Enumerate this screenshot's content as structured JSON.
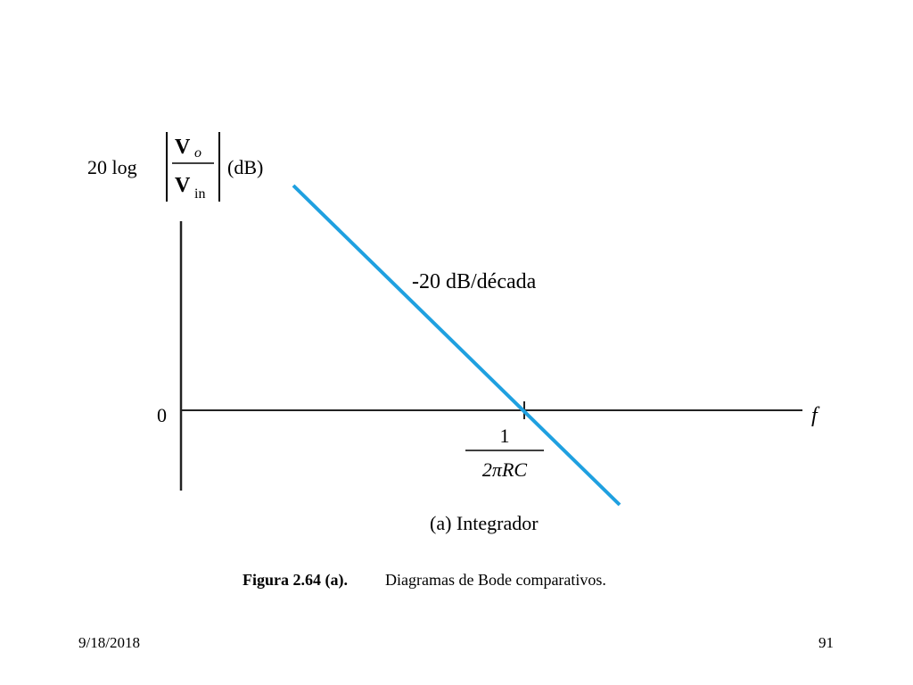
{
  "y_axis_label": {
    "prefix": "20 log",
    "numerator": "V",
    "numerator_sub": "o",
    "denominator": "V",
    "denominator_sub": "in",
    "unit": "(dB)"
  },
  "slope_label": "-20 dB/década",
  "origin_label": "0",
  "x_axis_label": "f",
  "corner_frequency": {
    "numerator": "1",
    "denominator": "2πRC"
  },
  "caption": "(a) Integrador",
  "figure": {
    "number": "Figura 2.64 (a).",
    "text": "Diagramas de Bode comparativos."
  },
  "footer": {
    "date": "9/18/2018",
    "page": "91"
  }
}
